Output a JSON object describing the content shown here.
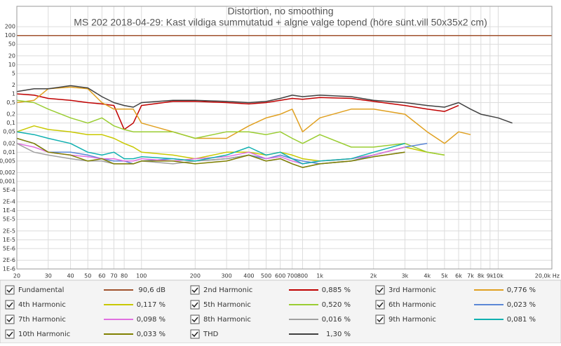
{
  "chart_data": {
    "type": "line",
    "title": "Distortion, no smoothing",
    "subtitle": "MS 202 2018-04-29: Kast vildiga summutatud + algne valge topend (höre sünt.vill 50x35x2 cm)",
    "xscale": "log",
    "yscale": "log",
    "grid": true,
    "xlim": [
      20,
      20000
    ],
    "ylim": [
      1e-06,
      1000
    ],
    "xticks": [
      20,
      30,
      40,
      50,
      60,
      70,
      80,
      100,
      200,
      300,
      400,
      500,
      600,
      700,
      800,
      {
        "value": 1000,
        "label": "1k"
      },
      {
        "value": 2000,
        "label": "2k"
      },
      {
        "value": 3000,
        "label": "3k"
      },
      {
        "value": 4000,
        "label": "4k"
      },
      {
        "value": 5000,
        "label": "5k"
      },
      {
        "value": 6000,
        "label": "6k"
      },
      {
        "value": 7000,
        "label": "7k"
      },
      {
        "value": 8000,
        "label": "8k"
      },
      {
        "value": 9000,
        "label": "9k"
      },
      {
        "value": 10000,
        "label": "10k"
      },
      {
        "value": 20000,
        "label": "20,0k Hz"
      }
    ],
    "yticks": [
      200,
      100,
      50,
      20,
      10,
      5,
      2,
      1,
      {
        "value": 0.5,
        "label": "0,5"
      },
      {
        "value": 0.2,
        "label": "0,2"
      },
      {
        "value": 0.1,
        "label": "0,1"
      },
      {
        "value": 0.05,
        "label": "0,05"
      },
      {
        "value": 0.02,
        "label": "0,02"
      },
      {
        "value": 0.01,
        "label": "0,01"
      },
      {
        "value": 0.005,
        "label": "0,005"
      },
      {
        "value": 0.002,
        "label": "0,002"
      },
      {
        "value": 0.001,
        "label": "0,001"
      },
      {
        "value": 0.0005,
        "label": "5E-4"
      },
      {
        "value": 0.0002,
        "label": "2E-4"
      },
      {
        "value": 0.0001,
        "label": "1E-4"
      },
      {
        "value": 5e-05,
        "label": "5E-5"
      },
      {
        "value": 2e-05,
        "label": "2E-5"
      },
      {
        "value": 1e-05,
        "label": "1E-5"
      },
      {
        "value": 5e-06,
        "label": "5E-6"
      },
      {
        "value": 2e-06,
        "label": "2E-6"
      },
      {
        "value": 1e-06,
        "label": "1E-6"
      }
    ],
    "x": [
      20,
      25,
      30,
      40,
      50,
      60,
      70,
      80,
      90,
      100,
      150,
      200,
      300,
      400,
      500,
      600,
      700,
      800,
      1000,
      1500,
      2000,
      3000,
      4000,
      5000,
      6000,
      7000,
      8000,
      10000,
      12000,
      20000
    ],
    "series": [
      {
        "name": "Fundamental",
        "color": "#a0522d",
        "readout": "90,6 dB",
        "values": [
          100,
          100,
          100,
          100,
          100,
          100,
          100,
          100,
          100,
          100,
          100,
          100,
          100,
          100,
          100,
          100,
          100,
          100,
          100,
          100,
          100,
          100,
          100,
          100,
          100,
          100,
          100,
          100,
          100,
          100
        ]
      },
      {
        "name": "2nd Harmonic",
        "color": "#c00000",
        "readout": "0,885 %",
        "values": [
          1.0,
          0.9,
          0.7,
          0.6,
          0.5,
          0.45,
          0.4,
          0.06,
          0.1,
          0.4,
          0.55,
          0.55,
          0.5,
          0.45,
          0.5,
          0.6,
          0.7,
          0.65,
          0.75,
          0.7,
          0.55,
          0.4,
          0.3,
          0.25,
          0.4,
          null,
          null,
          null,
          null,
          null
        ]
      },
      {
        "name": "3rd Harmonic",
        "color": "#e0a020",
        "readout": "0,776 %",
        "values": [
          0.5,
          0.6,
          1.5,
          1.7,
          1.5,
          0.5,
          0.3,
          0.3,
          0.3,
          0.1,
          0.05,
          0.03,
          0.03,
          0.08,
          0.15,
          0.2,
          0.3,
          0.05,
          0.15,
          0.3,
          0.3,
          0.2,
          0.05,
          0.02,
          0.05,
          0.04,
          null,
          null,
          null,
          null
        ]
      },
      {
        "name": "4th Harmonic",
        "color": "#c8c800",
        "readout": "0,117 %",
        "values": [
          0.05,
          0.08,
          0.06,
          0.05,
          0.04,
          0.04,
          0.03,
          0.02,
          0.015,
          0.01,
          0.008,
          0.006,
          0.01,
          0.01,
          0.008,
          0.01,
          0.008,
          0.006,
          0.005,
          0.006,
          0.008,
          0.015,
          0.01,
          0.008,
          null,
          null,
          null,
          null,
          null,
          null
        ]
      },
      {
        "name": "5th Harmonic",
        "color": "#9acd32",
        "readout": "0,520 %",
        "values": [
          0.6,
          0.5,
          0.3,
          0.15,
          0.1,
          0.15,
          0.08,
          0.06,
          0.05,
          0.05,
          0.05,
          0.03,
          0.05,
          0.05,
          0.04,
          0.05,
          0.03,
          0.02,
          0.04,
          0.015,
          0.015,
          0.02,
          0.01,
          0.008,
          null,
          null,
          null,
          null,
          null,
          null
        ]
      },
      {
        "name": "6th Harmonic",
        "color": "#5b87d6",
        "readout": "0,023 %",
        "values": [
          0.03,
          0.02,
          0.01,
          0.01,
          0.008,
          0.006,
          0.005,
          0.005,
          0.004,
          0.005,
          0.006,
          0.005,
          0.006,
          0.008,
          0.006,
          0.008,
          0.006,
          0.005,
          0.004,
          0.005,
          0.008,
          0.015,
          0.02,
          null,
          null,
          null,
          null,
          null,
          null,
          null
        ]
      },
      {
        "name": "7th Harmonic",
        "color": "#e070e0",
        "readout": "0,098 %",
        "values": [
          0.02,
          0.015,
          0.01,
          0.008,
          0.007,
          0.006,
          0.006,
          0.005,
          0.005,
          0.006,
          0.005,
          0.006,
          0.007,
          0.01,
          0.006,
          0.007,
          0.005,
          0.004,
          0.005,
          0.006,
          0.008,
          0.015,
          null,
          null,
          null,
          null,
          null,
          null,
          null,
          null
        ]
      },
      {
        "name": "8th Harmonic",
        "color": "#a0a0a0",
        "readout": "0,016 %",
        "values": [
          0.02,
          0.01,
          0.008,
          0.006,
          0.005,
          0.005,
          0.004,
          0.004,
          0.004,
          0.005,
          0.004,
          0.005,
          0.006,
          0.008,
          0.005,
          0.006,
          0.004,
          0.003,
          0.004,
          0.005,
          0.007,
          0.01,
          null,
          null,
          null,
          null,
          null,
          null,
          null,
          null
        ]
      },
      {
        "name": "9th Harmonic",
        "color": "#10b0b0",
        "readout": "0,081 %",
        "values": [
          0.05,
          0.04,
          0.03,
          0.02,
          0.01,
          0.008,
          0.01,
          0.006,
          0.006,
          0.007,
          0.006,
          0.005,
          0.008,
          0.015,
          0.008,
          0.01,
          0.006,
          0.004,
          0.005,
          0.006,
          0.01,
          0.02,
          null,
          null,
          null,
          null,
          null,
          null,
          null,
          null
        ]
      },
      {
        "name": "10th Harmonic",
        "color": "#808000",
        "readout": "0,033 %",
        "values": [
          0.03,
          0.02,
          0.01,
          0.008,
          0.005,
          0.006,
          0.004,
          0.004,
          0.004,
          0.005,
          0.005,
          0.004,
          0.005,
          0.008,
          0.005,
          0.006,
          0.004,
          0.003,
          0.004,
          0.005,
          0.007,
          0.01,
          null,
          null,
          null,
          null,
          null,
          null,
          null,
          null
        ]
      },
      {
        "name": "THD",
        "color": "#404040",
        "readout": "1,30 %",
        "values": [
          1.2,
          1.5,
          1.5,
          1.9,
          1.6,
          0.8,
          0.5,
          0.4,
          0.35,
          0.5,
          0.6,
          0.6,
          0.55,
          0.5,
          0.55,
          0.7,
          0.9,
          0.8,
          0.9,
          0.8,
          0.6,
          0.5,
          0.4,
          0.35,
          0.5,
          0.3,
          0.2,
          0.15,
          0.1,
          null
        ]
      }
    ]
  }
}
